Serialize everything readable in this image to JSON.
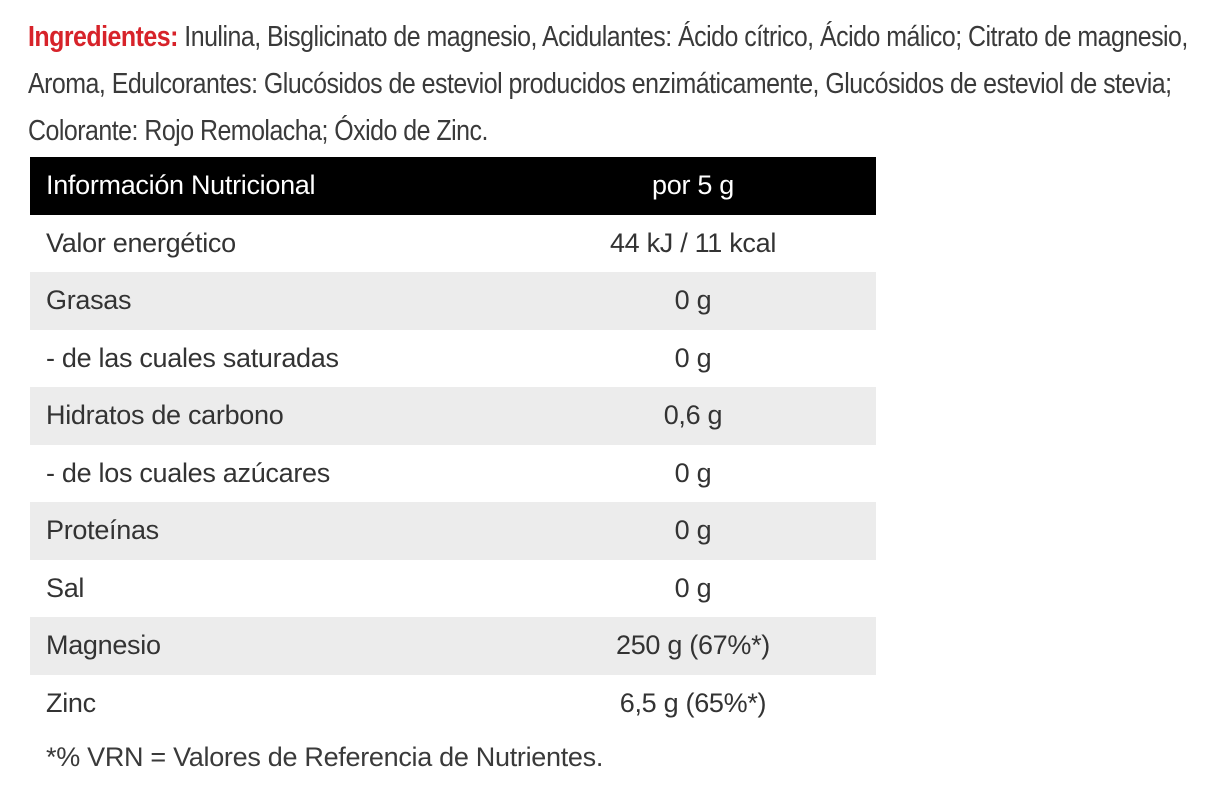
{
  "ingredients": {
    "label": "Ingredientes:",
    "text": " Inulina, Bisglicinato de magnesio, Acidulantes: Ácido cítrico, Ácido málico; Citrato de magnesio, Aroma, Edulcorantes: Glucósidos de esteviol producidos enzimáticamente, Glucósidos de esteviol de stevia; Colorante: Rojo Remolacha; Óxido de Zinc."
  },
  "table": {
    "header": {
      "name": "Información Nutricional",
      "value": "por 5 g"
    },
    "rows": [
      {
        "name": "Valor energético",
        "value": "44 kJ / 11 kcal"
      },
      {
        "name": "Grasas",
        "value": "0 g"
      },
      {
        "name": "- de las cuales saturadas",
        "value": "0 g"
      },
      {
        "name": "Hidratos de carbono",
        "value": "0,6 g"
      },
      {
        "name": "- de los cuales azúcares",
        "value": "0 g"
      },
      {
        "name": "Proteínas",
        "value": "0 g"
      },
      {
        "name": "Sal",
        "value": "0 g"
      },
      {
        "name": "Magnesio",
        "value": "250 g (67%*)"
      },
      {
        "name": "Zinc",
        "value": "6,5 g (65%*)"
      }
    ]
  },
  "footnote": "*% VRN = Valores de Referencia de Nutrientes.",
  "colors": {
    "accent": "#d7232a",
    "header_bg": "#000000",
    "shade_bg": "#ececec"
  }
}
